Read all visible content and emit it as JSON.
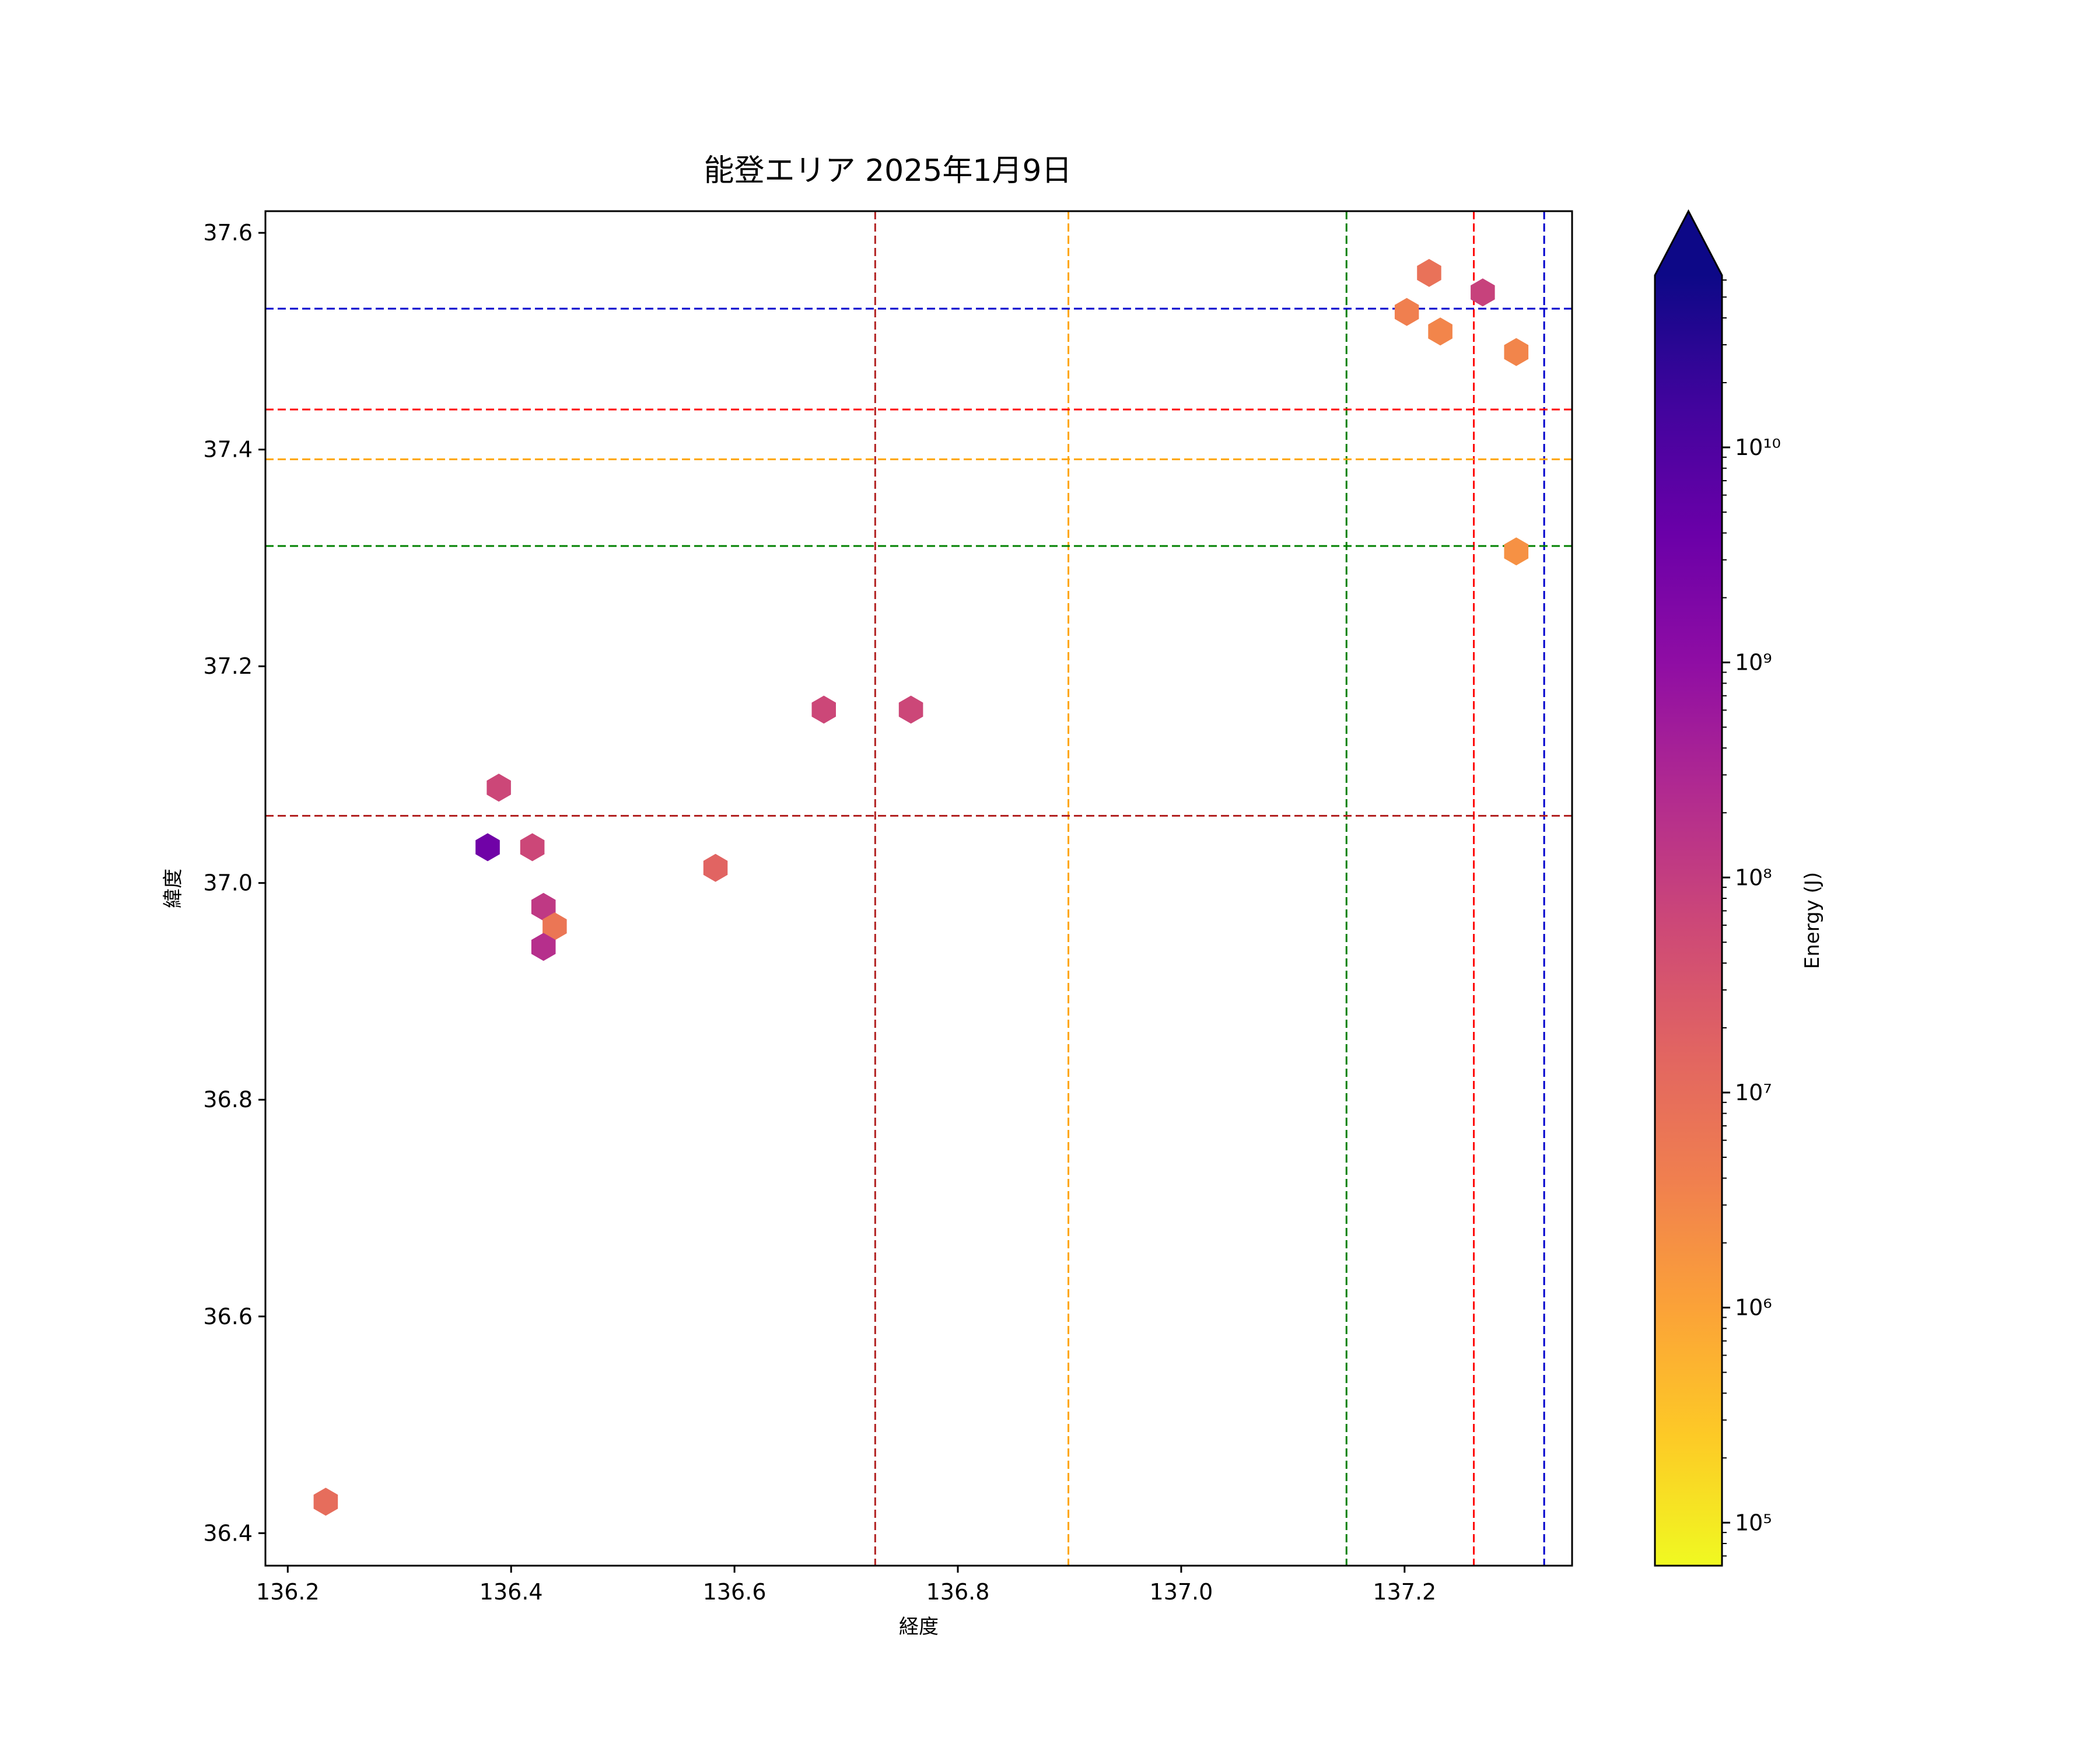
{
  "chart_data": {
    "type": "scatter",
    "title": "能登エリア 2025年1月9日",
    "xlabel": "経度",
    "ylabel": "緯度",
    "xlim": [
      136.18,
      137.35
    ],
    "ylim": [
      36.37,
      37.62
    ],
    "x_ticks": [
      136.2,
      136.4,
      136.6,
      136.8,
      137.0,
      137.2
    ],
    "x_tick_labels": [
      "136.2",
      "136.4",
      "136.6",
      "136.8",
      "137.0",
      "137.2"
    ],
    "y_ticks": [
      36.4,
      36.6,
      36.8,
      37.0,
      37.2,
      37.4,
      37.6
    ],
    "y_tick_labels": [
      "36.4",
      "36.6",
      "36.8",
      "37.0",
      "37.2",
      "37.4",
      "37.6"
    ],
    "grid": false,
    "marker": "hexagon",
    "color_scale": "log",
    "colormap": "plasma_r",
    "colorbar": {
      "label": "Energy (J)",
      "log10_range": [
        4.8,
        10.8
      ],
      "extend": "max",
      "major_ticks_log10": [
        5,
        6,
        7,
        8,
        9,
        10
      ],
      "major_tick_labels": [
        "10⁵",
        "10⁶",
        "10⁷",
        "10⁸",
        "10⁹",
        "10¹⁰"
      ]
    },
    "points": [
      {
        "x": 137.222,
        "y": 37.563,
        "energy_log10": 6.9
      },
      {
        "x": 137.27,
        "y": 37.545,
        "energy_log10": 7.9
      },
      {
        "x": 137.202,
        "y": 37.527,
        "energy_log10": 6.6
      },
      {
        "x": 137.232,
        "y": 37.509,
        "energy_log10": 6.5
      },
      {
        "x": 137.3,
        "y": 37.49,
        "energy_log10": 6.5
      },
      {
        "x": 137.3,
        "y": 37.306,
        "energy_log10": 6.3
      },
      {
        "x": 136.68,
        "y": 37.16,
        "energy_log10": 7.8
      },
      {
        "x": 136.758,
        "y": 37.16,
        "energy_log10": 7.8
      },
      {
        "x": 136.389,
        "y": 37.088,
        "energy_log10": 7.8
      },
      {
        "x": 136.379,
        "y": 37.033,
        "energy_log10": 9.5
      },
      {
        "x": 136.419,
        "y": 37.033,
        "energy_log10": 7.8
      },
      {
        "x": 136.583,
        "y": 37.014,
        "energy_log10": 7.2
      },
      {
        "x": 136.429,
        "y": 36.978,
        "energy_log10": 8.1
      },
      {
        "x": 136.439,
        "y": 36.96,
        "energy_log10": 6.8
      },
      {
        "x": 136.429,
        "y": 36.941,
        "energy_log10": 8.3
      },
      {
        "x": 136.234,
        "y": 36.429,
        "energy_log10": 7.0
      }
    ],
    "reference_lines": [
      {
        "orientation": "vertical",
        "value": 136.726,
        "color": "#b22222"
      },
      {
        "orientation": "vertical",
        "value": 136.899,
        "color": "#ffa500"
      },
      {
        "orientation": "vertical",
        "value": 137.148,
        "color": "#008000"
      },
      {
        "orientation": "vertical",
        "value": 137.262,
        "color": "#ff0000"
      },
      {
        "orientation": "vertical",
        "value": 137.325,
        "color": "#0000cd"
      },
      {
        "orientation": "horizontal",
        "value": 37.53,
        "color": "#0000cd"
      },
      {
        "orientation": "horizontal",
        "value": 37.437,
        "color": "#ff0000"
      },
      {
        "orientation": "horizontal",
        "value": 37.391,
        "color": "#ffa500"
      },
      {
        "orientation": "horizontal",
        "value": 37.311,
        "color": "#008000"
      },
      {
        "orientation": "horizontal",
        "value": 37.062,
        "color": "#b22222"
      }
    ]
  }
}
